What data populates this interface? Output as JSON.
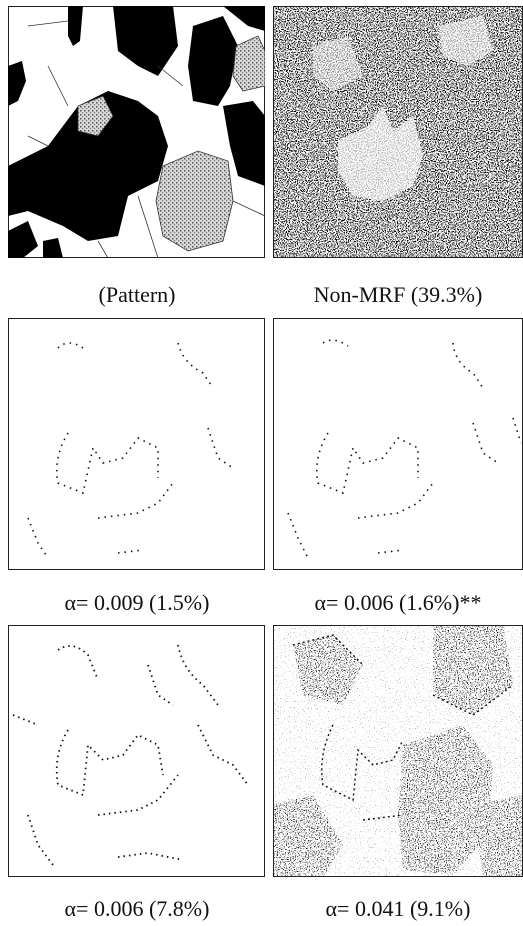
{
  "panels": [
    {
      "caption": "(Pattern)"
    },
    {
      "caption": "Non-MRF (39.3%)"
    },
    {
      "caption": "α= 0.009 (1.5%)"
    },
    {
      "caption": "α= 0.006 (1.6%)**"
    },
    {
      "caption": "α= 0.006 (7.8%)"
    },
    {
      "caption": "α= 0.041 (9.1%)"
    }
  ]
}
